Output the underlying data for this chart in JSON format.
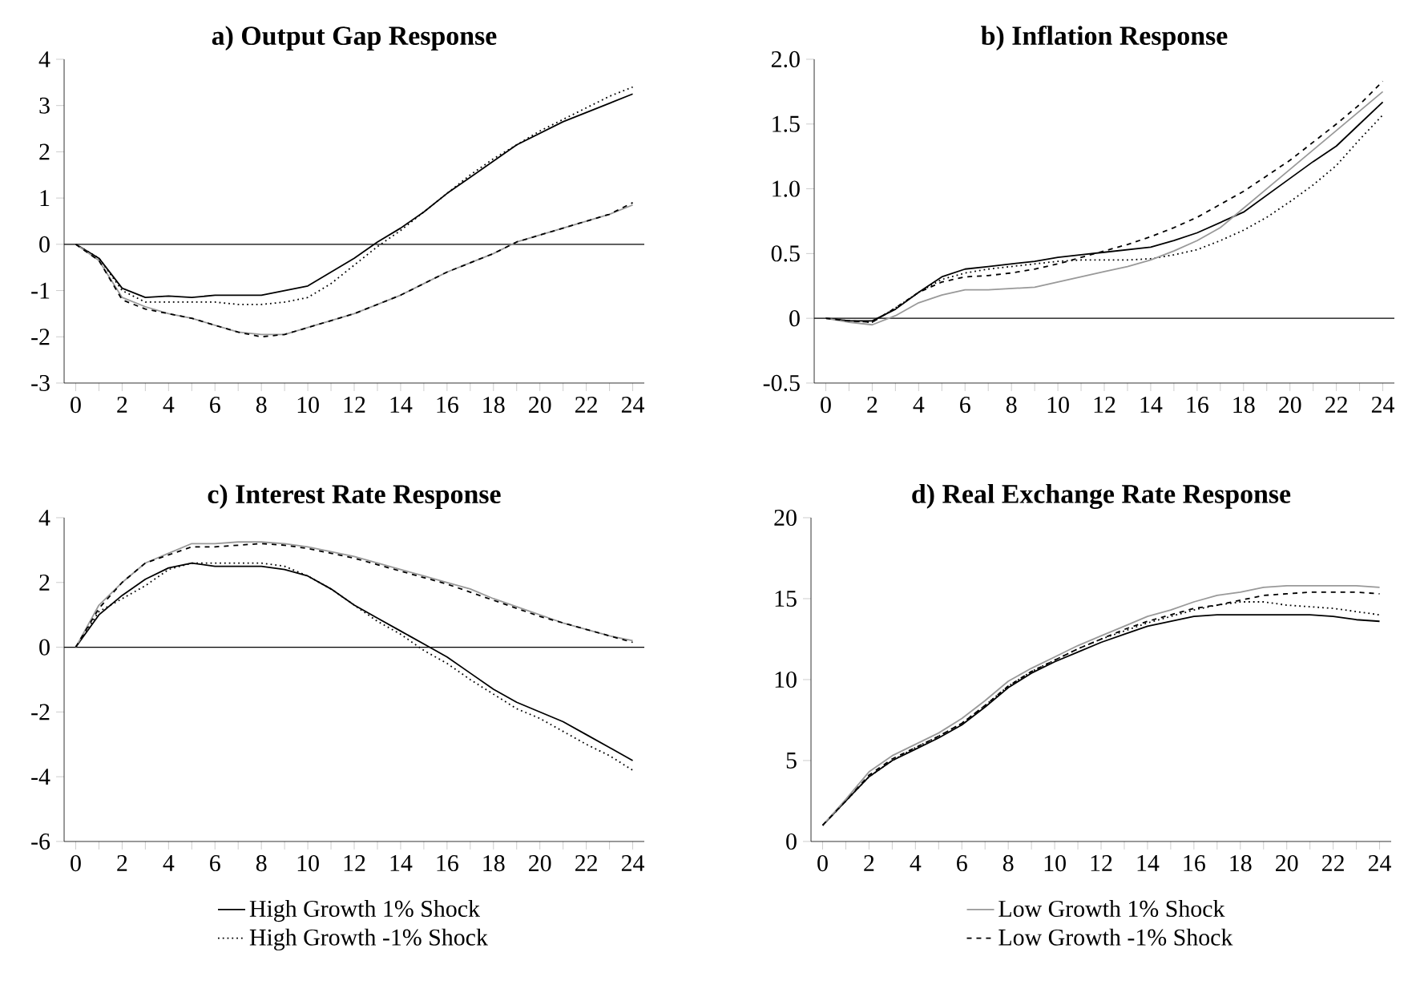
{
  "chart_data": [
    {
      "type": "line",
      "title": "a) Output Gap Response",
      "x": [
        0,
        1,
        2,
        3,
        4,
        5,
        6,
        7,
        8,
        9,
        10,
        11,
        12,
        13,
        14,
        15,
        16,
        17,
        18,
        19,
        20,
        21,
        22,
        23,
        24
      ],
      "xlim": [
        -0.5,
        24.5
      ],
      "xticks": [
        0,
        {
          "value": 1,
          "label": null
        },
        2,
        {
          "value": 3,
          "label": null
        },
        4,
        {
          "value": 5,
          "label": null
        },
        6,
        {
          "value": 7,
          "label": null
        },
        8,
        {
          "value": 9,
          "label": null
        },
        10,
        {
          "value": 11,
          "label": null
        },
        12,
        {
          "value": 13,
          "label": null
        },
        14,
        {
          "value": 15,
          "label": null
        },
        16,
        {
          "value": 17,
          "label": null
        },
        18,
        {
          "value": 19,
          "label": null
        },
        20,
        {
          "value": 21,
          "label": null
        },
        22,
        {
          "value": 23,
          "label": null
        },
        24
      ],
      "ylim": [
        -3,
        4
      ],
      "yticks": [
        -3,
        -2,
        -1,
        0,
        1,
        2,
        3,
        4
      ],
      "ref_lines": [
        {
          "axis": "y",
          "value": 0,
          "color": "#000000"
        }
      ],
      "series": [
        {
          "color": "#000000",
          "line_style": "solid",
          "values": [
            0,
            -0.3,
            -0.95,
            -1.15,
            -1.12,
            -1.15,
            -1.1,
            -1.1,
            -1.1,
            -1.0,
            -0.9,
            -0.6,
            -0.3,
            0.05,
            0.35,
            0.7,
            1.1,
            1.45,
            1.8,
            2.15,
            2.4,
            2.65,
            2.85,
            3.05,
            3.25
          ]
        },
        {
          "color": "#000000",
          "line_style": "dotted",
          "values": [
            0,
            -0.3,
            -1.0,
            -1.25,
            -1.25,
            -1.25,
            -1.25,
            -1.3,
            -1.3,
            -1.25,
            -1.15,
            -0.85,
            -0.45,
            -0.05,
            0.3,
            0.7,
            1.1,
            1.5,
            1.85,
            2.15,
            2.45,
            2.7,
            2.95,
            3.2,
            3.4
          ]
        },
        {
          "color": "#999999",
          "line_style": "solid",
          "values": [
            0,
            -0.35,
            -1.15,
            -1.35,
            -1.5,
            -1.6,
            -1.75,
            -1.9,
            -1.95,
            -1.95,
            -1.8,
            -1.65,
            -1.5,
            -1.3,
            -1.1,
            -0.85,
            -0.6,
            -0.4,
            -0.2,
            0.05,
            0.2,
            0.35,
            0.5,
            0.65,
            0.85
          ]
        },
        {
          "color": "#000000",
          "line_style": "dashed",
          "values": [
            0,
            -0.35,
            -1.2,
            -1.4,
            -1.5,
            -1.6,
            -1.75,
            -1.9,
            -2.0,
            -1.95,
            -1.8,
            -1.65,
            -1.5,
            -1.3,
            -1.1,
            -0.85,
            -0.6,
            -0.4,
            -0.2,
            0.05,
            0.2,
            0.35,
            0.5,
            0.65,
            0.9
          ]
        }
      ]
    },
    {
      "type": "line",
      "title": "b) Inflation Response",
      "x": [
        0,
        1,
        2,
        3,
        4,
        5,
        6,
        7,
        8,
        9,
        10,
        11,
        12,
        13,
        14,
        15,
        16,
        17,
        18,
        19,
        20,
        21,
        22,
        23,
        24
      ],
      "xlim": [
        -0.5,
        24.5
      ],
      "xticks": [
        0,
        {
          "value": 1,
          "label": null
        },
        2,
        {
          "value": 3,
          "label": null
        },
        4,
        {
          "value": 5,
          "label": null
        },
        6,
        {
          "value": 7,
          "label": null
        },
        8,
        {
          "value": 9,
          "label": null
        },
        10,
        {
          "value": 11,
          "label": null
        },
        12,
        {
          "value": 13,
          "label": null
        },
        14,
        {
          "value": 15,
          "label": null
        },
        16,
        {
          "value": 17,
          "label": null
        },
        18,
        {
          "value": 19,
          "label": null
        },
        20,
        {
          "value": 21,
          "label": null
        },
        22,
        {
          "value": 23,
          "label": null
        },
        24
      ],
      "ylim": [
        -0.5,
        2.0
      ],
      "yticks": [
        -0.5,
        0,
        {
          "value": 0.5,
          "label": "0.5"
        },
        {
          "value": 1,
          "label": "1.0"
        },
        {
          "value": 1.5,
          "label": "1.5"
        },
        {
          "value": 2,
          "label": "2.0"
        }
      ],
      "ref_lines": [
        {
          "axis": "y",
          "value": 0,
          "color": "#000000"
        }
      ],
      "series": [
        {
          "color": "#000000",
          "line_style": "solid",
          "values": [
            0,
            -0.02,
            -0.02,
            0.07,
            0.2,
            0.32,
            0.38,
            0.4,
            0.42,
            0.44,
            0.47,
            0.49,
            0.51,
            0.53,
            0.55,
            0.6,
            0.66,
            0.74,
            0.82,
            0.95,
            1.08,
            1.21,
            1.33,
            1.5,
            1.67
          ]
        },
        {
          "color": "#000000",
          "line_style": "dotted",
          "values": [
            0,
            -0.02,
            -0.03,
            0.08,
            0.2,
            0.3,
            0.35,
            0.38,
            0.4,
            0.42,
            0.44,
            0.45,
            0.45,
            0.45,
            0.46,
            0.49,
            0.53,
            0.6,
            0.68,
            0.78,
            0.9,
            1.03,
            1.18,
            1.38,
            1.57
          ]
        },
        {
          "color": "#999999",
          "line_style": "solid",
          "values": [
            0,
            -0.03,
            -0.05,
            0.02,
            0.12,
            0.18,
            0.22,
            0.22,
            0.23,
            0.24,
            0.28,
            0.32,
            0.36,
            0.4,
            0.45,
            0.52,
            0.6,
            0.7,
            0.85,
            1.0,
            1.15,
            1.3,
            1.45,
            1.6,
            1.75
          ]
        },
        {
          "color": "#000000",
          "line_style": "dashed",
          "values": [
            0,
            -0.02,
            -0.03,
            0.08,
            0.2,
            0.28,
            0.32,
            0.33,
            0.35,
            0.38,
            0.42,
            0.47,
            0.52,
            0.57,
            0.63,
            0.7,
            0.78,
            0.88,
            0.98,
            1.1,
            1.22,
            1.36,
            1.5,
            1.65,
            1.83
          ]
        }
      ]
    },
    {
      "type": "line",
      "title": "c) Interest Rate Response",
      "x": [
        0,
        1,
        2,
        3,
        4,
        5,
        6,
        7,
        8,
        9,
        10,
        11,
        12,
        13,
        14,
        15,
        16,
        17,
        18,
        19,
        20,
        21,
        22,
        23,
        24
      ],
      "xlim": [
        -0.5,
        24.5
      ],
      "xticks": [
        0,
        {
          "value": 1,
          "label": null
        },
        2,
        {
          "value": 3,
          "label": null
        },
        4,
        {
          "value": 5,
          "label": null
        },
        6,
        {
          "value": 7,
          "label": null
        },
        8,
        {
          "value": 9,
          "label": null
        },
        10,
        {
          "value": 11,
          "label": null
        },
        12,
        {
          "value": 13,
          "label": null
        },
        14,
        {
          "value": 15,
          "label": null
        },
        16,
        {
          "value": 17,
          "label": null
        },
        18,
        {
          "value": 19,
          "label": null
        },
        20,
        {
          "value": 21,
          "label": null
        },
        22,
        {
          "value": 23,
          "label": null
        },
        24
      ],
      "ylim": [
        -6,
        4
      ],
      "yticks": [
        -6,
        -4,
        -2,
        0,
        2,
        4
      ],
      "ref_lines": [
        {
          "axis": "y",
          "value": 0,
          "color": "#000000"
        }
      ],
      "legend": "bottom",
      "series": [
        {
          "name": "High Growth 1% Shock",
          "color": "#000000",
          "line_style": "solid",
          "values": [
            0,
            1.0,
            1.6,
            2.1,
            2.45,
            2.6,
            2.5,
            2.5,
            2.5,
            2.4,
            2.2,
            1.8,
            1.3,
            0.9,
            0.5,
            0.1,
            -0.3,
            -0.8,
            -1.3,
            -1.7,
            -2.0,
            -2.3,
            -2.7,
            -3.1,
            -3.5
          ]
        },
        {
          "name": "High Growth -1% Shock",
          "color": "#000000",
          "line_style": "dotted",
          "values": [
            0,
            1.1,
            1.5,
            1.9,
            2.4,
            2.6,
            2.6,
            2.6,
            2.6,
            2.5,
            2.2,
            1.8,
            1.3,
            0.8,
            0.4,
            -0.1,
            -0.5,
            -1.0,
            -1.45,
            -1.9,
            -2.2,
            -2.6,
            -3.0,
            -3.35,
            -3.8
          ]
        },
        {
          "color": "#999999",
          "line_style": "solid",
          "values": [
            0,
            1.3,
            2.0,
            2.6,
            2.9,
            3.2,
            3.2,
            3.25,
            3.25,
            3.2,
            3.1,
            2.95,
            2.8,
            2.6,
            2.4,
            2.2,
            2.0,
            1.8,
            1.5,
            1.25,
            1.0,
            0.75,
            0.55,
            0.35,
            0.2
          ]
        },
        {
          "color": "#000000",
          "line_style": "dashed",
          "values": [
            0,
            1.2,
            2.0,
            2.6,
            2.85,
            3.1,
            3.1,
            3.15,
            3.2,
            3.15,
            3.05,
            2.9,
            2.75,
            2.55,
            2.35,
            2.15,
            1.95,
            1.7,
            1.45,
            1.2,
            0.95,
            0.75,
            0.55,
            0.35,
            0.15
          ]
        }
      ]
    },
    {
      "type": "line",
      "title": "d) Real Exchange Rate Response",
      "x": [
        0,
        1,
        2,
        3,
        4,
        5,
        6,
        7,
        8,
        9,
        10,
        11,
        12,
        13,
        14,
        15,
        16,
        17,
        18,
        19,
        20,
        21,
        22,
        23,
        24
      ],
      "xlim": [
        -0.5,
        24.5
      ],
      "xticks": [
        0,
        {
          "value": 1,
          "label": null
        },
        2,
        {
          "value": 3,
          "label": null
        },
        4,
        {
          "value": 5,
          "label": null
        },
        6,
        {
          "value": 7,
          "label": null
        },
        8,
        {
          "value": 9,
          "label": null
        },
        10,
        {
          "value": 11,
          "label": null
        },
        12,
        {
          "value": 13,
          "label": null
        },
        14,
        {
          "value": 15,
          "label": null
        },
        16,
        {
          "value": 17,
          "label": null
        },
        18,
        {
          "value": 19,
          "label": null
        },
        20,
        {
          "value": 21,
          "label": null
        },
        22,
        {
          "value": 23,
          "label": null
        },
        24
      ],
      "ylim": [
        0,
        20
      ],
      "yticks": [
        0,
        5,
        10,
        15,
        20
      ],
      "legend": "bottom",
      "series": [
        {
          "color": "#000000",
          "line_style": "solid",
          "values": [
            1,
            2.5,
            4.0,
            5.0,
            5.7,
            6.4,
            7.2,
            8.3,
            9.5,
            10.4,
            11.1,
            11.7,
            12.3,
            12.8,
            13.3,
            13.6,
            13.9,
            14.0,
            14.0,
            14.0,
            14.0,
            14.0,
            13.9,
            13.7,
            13.6
          ]
        },
        {
          "color": "#000000",
          "line_style": "dotted",
          "values": [
            1,
            2.5,
            4.0,
            5.0,
            5.8,
            6.5,
            7.3,
            8.4,
            9.6,
            10.5,
            11.2,
            11.9,
            12.5,
            13.0,
            13.5,
            13.9,
            14.3,
            14.6,
            14.8,
            14.8,
            14.6,
            14.5,
            14.4,
            14.2,
            14.0
          ]
        },
        {
          "name": "Low Growth 1% Shock",
          "color": "#999999",
          "line_style": "solid",
          "values": [
            1,
            2.6,
            4.3,
            5.3,
            6.0,
            6.7,
            7.6,
            8.7,
            9.9,
            10.7,
            11.4,
            12.1,
            12.7,
            13.3,
            13.9,
            14.3,
            14.8,
            15.2,
            15.4,
            15.7,
            15.8,
            15.8,
            15.8,
            15.8,
            15.7
          ]
        },
        {
          "name": "Low Growth -1% Shock",
          "color": "#000000",
          "line_style": "dashed",
          "values": [
            1,
            2.5,
            4.1,
            5.1,
            5.8,
            6.5,
            7.3,
            8.4,
            9.6,
            10.5,
            11.2,
            11.9,
            12.5,
            13.1,
            13.6,
            14.0,
            14.4,
            14.6,
            14.9,
            15.2,
            15.3,
            15.4,
            15.4,
            15.4,
            15.3
          ]
        }
      ]
    }
  ]
}
